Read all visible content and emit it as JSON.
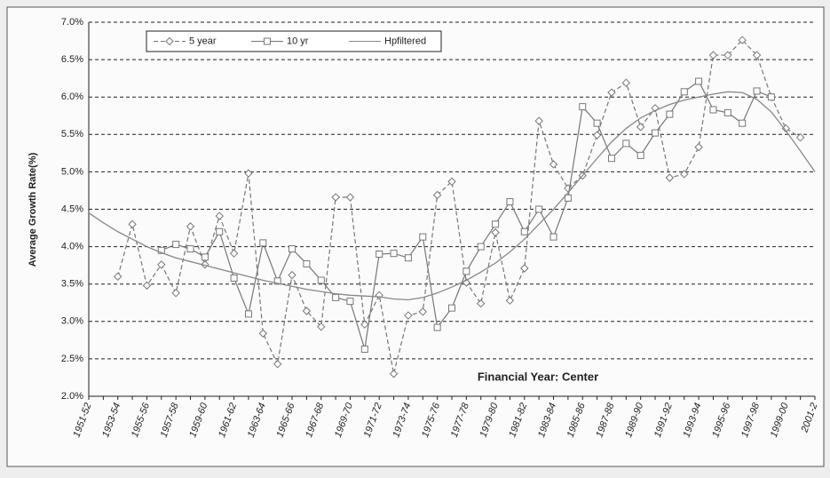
{
  "chart_data": {
    "type": "line",
    "y_label": "Average Growth Rate(%)",
    "x_label": "Financial Year: Center",
    "categories": [
      "1951-52",
      null,
      "1953-54",
      null,
      "1955-56",
      null,
      "1957-58",
      null,
      "1959-60",
      null,
      "1961-62",
      null,
      "1963-64",
      null,
      "1965-66",
      null,
      "1967-68",
      null,
      "1969-70",
      null,
      "1971-72",
      null,
      "1973-74",
      null,
      "1975-76",
      null,
      "1977-78",
      null,
      "1979-80",
      null,
      "1981-82",
      null,
      "1983-84",
      null,
      "1985-86",
      null,
      "1987-88",
      null,
      "1989-90",
      null,
      "1991-92",
      null,
      "1993-94",
      null,
      "1995-96",
      null,
      "1997-98",
      null,
      "1999-00",
      null,
      "2001-2"
    ],
    "series": [
      {
        "name": "5 year",
        "color": "#777777",
        "marker": "diamond",
        "dash": true,
        "values": [
          null,
          null,
          3.6,
          4.3,
          3.48,
          3.76,
          3.38,
          4.27,
          3.76,
          4.41,
          3.91,
          4.98,
          2.84,
          2.43,
          3.62,
          3.14,
          2.93,
          4.66,
          4.66,
          2.96,
          3.35,
          2.3,
          3.08,
          3.13,
          4.69,
          4.87,
          3.52,
          3.24,
          4.19,
          3.28,
          3.71,
          5.68,
          5.1,
          4.78,
          4.95,
          5.49,
          6.06,
          6.19,
          5.6,
          5.85,
          4.92,
          4.97,
          5.33,
          6.56,
          6.56,
          6.76,
          6.56,
          6.0,
          5.58,
          5.46,
          null
        ]
      },
      {
        "name": "10 yr",
        "color": "#777777",
        "marker": "square",
        "dash": false,
        "values": [
          null,
          null,
          null,
          null,
          null,
          3.95,
          4.03,
          3.97,
          3.86,
          4.2,
          3.58,
          3.1,
          4.05,
          3.54,
          3.97,
          3.77,
          3.55,
          3.32,
          3.27,
          2.63,
          3.9,
          3.91,
          3.85,
          4.13,
          2.92,
          3.18,
          3.67,
          4.0,
          4.3,
          4.6,
          4.2,
          4.5,
          4.13,
          4.65,
          5.87,
          5.65,
          5.18,
          5.38,
          5.22,
          5.52,
          5.77,
          6.07,
          6.21,
          5.83,
          5.79,
          5.65,
          6.08,
          6.0,
          null,
          null,
          null
        ]
      },
      {
        "name": "Hpfiltered",
        "color": "#888888",
        "marker": "none",
        "dash": false,
        "values": [
          4.45,
          4.32,
          4.2,
          4.1,
          4.0,
          3.92,
          3.85,
          3.8,
          3.75,
          3.7,
          3.65,
          3.6,
          3.55,
          3.51,
          3.47,
          3.43,
          3.4,
          3.37,
          3.35,
          3.34,
          3.33,
          3.3,
          3.29,
          3.32,
          3.38,
          3.46,
          3.55,
          3.66,
          3.78,
          3.93,
          4.1,
          4.3,
          4.5,
          4.72,
          4.95,
          5.18,
          5.4,
          5.58,
          5.72,
          5.82,
          5.9,
          5.96,
          6.0,
          6.04,
          6.07,
          6.06,
          5.97,
          5.8,
          5.55,
          5.28,
          5.0
        ]
      }
    ],
    "ylim": [
      2,
      7
    ],
    "yticks": [
      {
        "value": 2,
        "label": "2.0%"
      },
      {
        "value": 2.5,
        "label": "2.5%"
      },
      {
        "value": 3,
        "label": "3.0%"
      },
      {
        "value": 3.5,
        "label": "3.5%"
      },
      {
        "value": 4,
        "label": "4.0%"
      },
      {
        "value": 4.5,
        "label": "4.5%"
      },
      {
        "value": 5,
        "label": "5.0%"
      },
      {
        "value": 5.5,
        "label": "5.5%"
      },
      {
        "value": 6,
        "label": "6.0%"
      },
      {
        "value": 6.5,
        "label": "6.5%"
      },
      {
        "value": 7,
        "label": "7.0%"
      }
    ],
    "grid": true,
    "legend": "top-left"
  }
}
